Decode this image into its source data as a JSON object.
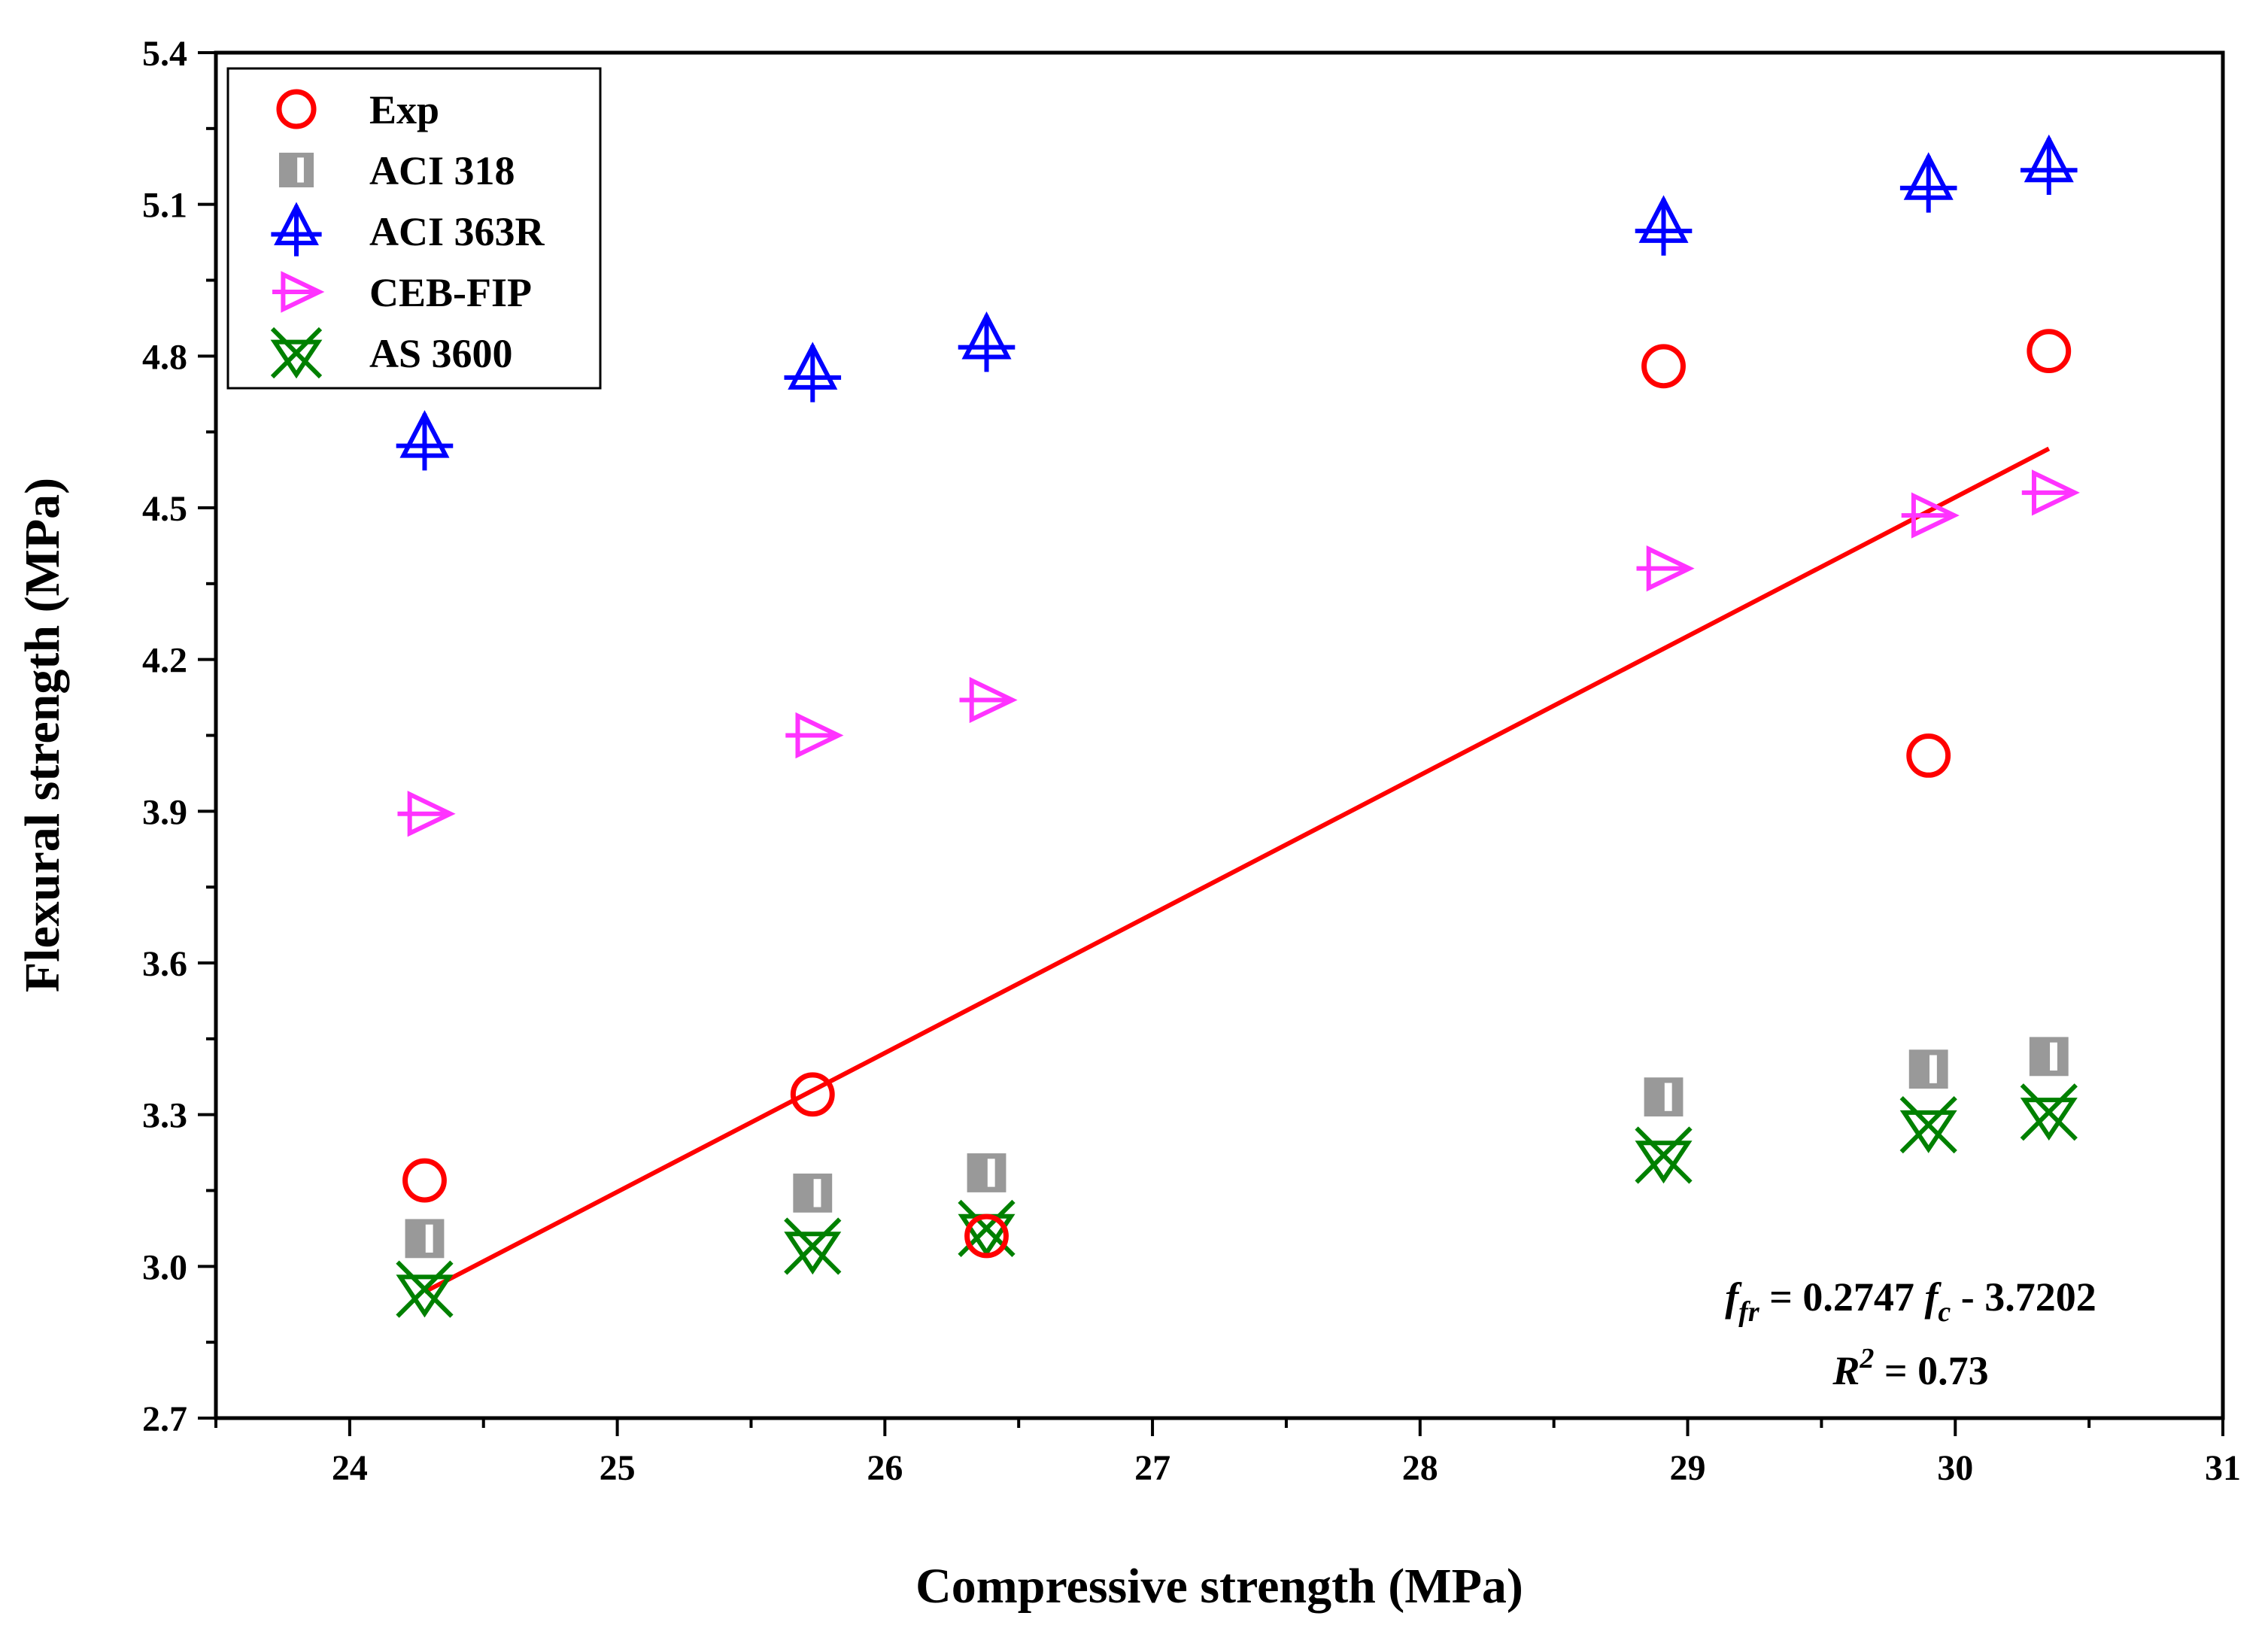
{
  "chart_data": {
    "type": "scatter",
    "title": "",
    "xlabel": "Compressive strength (MPa)",
    "ylabel": "Flexural strength (MPa)",
    "xlim": [
      23.5,
      31
    ],
    "ylim": [
      2.7,
      5.4
    ],
    "xticks": [
      24,
      25,
      26,
      27,
      28,
      29,
      30,
      31
    ],
    "xtick_labels": [
      "24",
      "25",
      "26",
      "27",
      "28",
      "29",
      "30",
      "31"
    ],
    "yticks": [
      2.7,
      3.0,
      3.3,
      3.6,
      3.9,
      4.2,
      4.5,
      4.8,
      5.1,
      5.4
    ],
    "ytick_labels": [
      "2.7",
      "3.0",
      "3.3",
      "3.6",
      "3.9",
      "4.2",
      "4.5",
      "4.8",
      "5.1",
      "5.4"
    ],
    "grid": false,
    "legend_position": "top-left",
    "series": [
      {
        "name": "Exp",
        "marker": "circle",
        "color": "#ff0000",
        "x": [
          24.28,
          25.73,
          26.38,
          28.91,
          29.9,
          30.35
        ],
        "y": [
          3.17,
          3.34,
          3.06,
          4.78,
          4.01,
          4.81
        ]
      },
      {
        "name": "ACI 318",
        "marker": "half-filled-square",
        "color": "#999999",
        "x": [
          24.28,
          25.73,
          26.38,
          28.91,
          29.9,
          30.35
        ],
        "y": [
          3.055,
          3.145,
          3.185,
          3.335,
          3.39,
          3.415
        ]
      },
      {
        "name": "ACI 363R",
        "marker": "triangle-up-plus",
        "color": "#0000ff",
        "x": [
          24.28,
          25.73,
          26.38,
          28.91,
          29.9,
          30.35
        ],
        "y": [
          4.63,
          4.765,
          4.825,
          5.055,
          5.14,
          5.175
        ]
      },
      {
        "name": "CEB-FIP",
        "marker": "triangle-right",
        "color": "#ff33ff",
        "x": [
          24.28,
          25.73,
          26.38,
          28.91,
          29.9,
          30.35
        ],
        "y": [
          3.895,
          4.05,
          4.12,
          4.38,
          4.485,
          4.53
        ]
      },
      {
        "name": "AS 3600",
        "marker": "hourglass-x",
        "color": "#008000",
        "x": [
          24.28,
          25.73,
          26.38,
          28.91,
          29.9,
          30.35
        ],
        "y": [
          2.955,
          3.04,
          3.075,
          3.22,
          3.28,
          3.305
        ]
      }
    ],
    "fit_line": {
      "name": "linear fit",
      "color": "#ff0000",
      "x": [
        24.28,
        30.35
      ],
      "slope": 0.2747,
      "intercept": -3.7202
    },
    "annotation": {
      "eq_lhs": "f",
      "eq_lhs_sub": "fr",
      "eq_mid": " = 0.2747 ",
      "eq_rhs": "f",
      "eq_rhs_sub": "c",
      "eq_tail": " - 3.7202",
      "r2_label": "R",
      "r2_sup": "2",
      "r2_value": " = 0.73"
    }
  }
}
